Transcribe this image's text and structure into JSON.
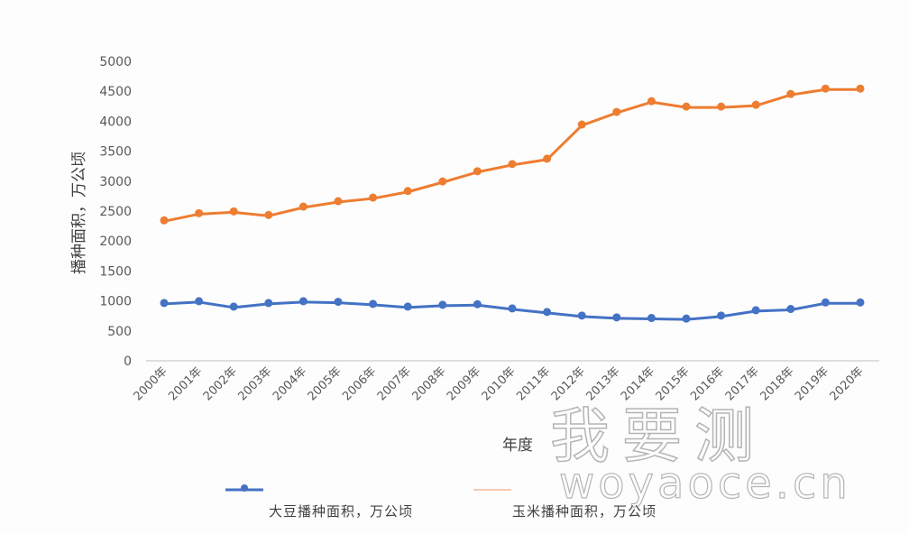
{
  "chart_data": {
    "type": "line",
    "title": "",
    "xlabel": "年度",
    "ylabel": "播种面积，万公顷",
    "ylim": [
      0,
      5000
    ],
    "yticks": [
      0,
      500,
      1000,
      1500,
      2000,
      2500,
      3000,
      3500,
      4000,
      4500,
      5000
    ],
    "grid": false,
    "legend_position": "bottom",
    "categories": [
      "2000年",
      "2001年",
      "2002年",
      "2003年",
      "2004年",
      "2005年",
      "2006年",
      "2007年",
      "2008年",
      "2009年",
      "2010年",
      "2011年",
      "2012年",
      "2013年",
      "2014年",
      "2015年",
      "2016年",
      "2017年",
      "2018年",
      "2019年",
      "2020年"
    ],
    "series": [
      {
        "name": "大豆播种面积，万公顷",
        "color": "#4472C4",
        "values": [
          950,
          980,
          890,
          950,
          980,
          970,
          935,
          890,
          920,
          930,
          860,
          800,
          740,
          710,
          700,
          690,
          740,
          830,
          850,
          960,
          960
        ]
      },
      {
        "name": "玉米播种面积，万公顷",
        "color": "#ED7D31",
        "values": [
          2330,
          2450,
          2480,
          2420,
          2560,
          2650,
          2710,
          2820,
          2980,
          3150,
          3270,
          3360,
          3930,
          4140,
          4320,
          4230,
          4230,
          4260,
          4440,
          4530,
          4530
        ]
      }
    ]
  },
  "legend": {
    "soybean": "大豆播种面积，万公顷",
    "corn": "玉米播种面积，万公顷"
  },
  "watermark": {
    "cn": "我要测",
    "en": "woyaoce.cn"
  }
}
